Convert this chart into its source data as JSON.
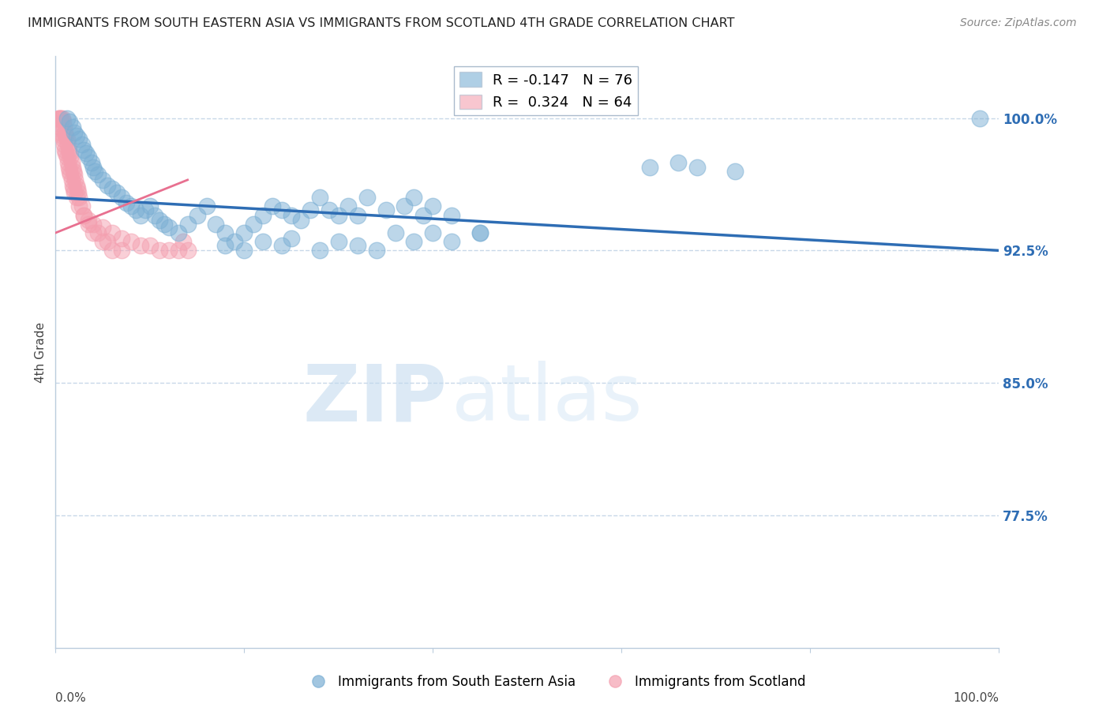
{
  "title": "IMMIGRANTS FROM SOUTH EASTERN ASIA VS IMMIGRANTS FROM SCOTLAND 4TH GRADE CORRELATION CHART",
  "source": "Source: ZipAtlas.com",
  "ylabel": "4th Grade",
  "ytick_labels": [
    "77.5%",
    "85.0%",
    "92.5%",
    "100.0%"
  ],
  "ytick_values": [
    77.5,
    85.0,
    92.5,
    100.0
  ],
  "xlim": [
    0.0,
    100.0
  ],
  "ylim": [
    70.0,
    103.5
  ],
  "blue_R": -0.147,
  "blue_N": 76,
  "pink_R": 0.324,
  "pink_N": 64,
  "blue_color": "#7BAFD4",
  "pink_color": "#F4A0B0",
  "trend_color": "#2E6DB4",
  "pink_trend_color": "#E87090",
  "grid_color": "#C8D8E8",
  "blue_scatter_x": [
    1.2,
    1.5,
    1.8,
    2.0,
    2.2,
    2.5,
    2.8,
    3.0,
    3.2,
    3.5,
    3.8,
    4.0,
    4.2,
    4.5,
    5.0,
    5.5,
    6.0,
    6.5,
    7.0,
    7.5,
    8.0,
    8.5,
    9.0,
    9.5,
    10.0,
    10.5,
    11.0,
    11.5,
    12.0,
    13.0,
    14.0,
    15.0,
    16.0,
    17.0,
    18.0,
    19.0,
    20.0,
    21.0,
    22.0,
    23.0,
    24.0,
    25.0,
    26.0,
    27.0,
    28.0,
    29.0,
    30.0,
    31.0,
    32.0,
    33.0,
    35.0,
    37.0,
    38.0,
    39.0,
    40.0,
    42.0,
    45.0,
    63.0,
    66.0,
    68.0,
    72.0,
    98.0,
    18.0,
    20.0,
    22.0,
    24.0,
    25.0,
    28.0,
    30.0,
    32.0,
    34.0,
    36.0,
    38.0,
    40.0,
    42.0,
    45.0
  ],
  "blue_scatter_y": [
    100.0,
    99.8,
    99.5,
    99.2,
    99.0,
    98.8,
    98.5,
    98.2,
    98.0,
    97.8,
    97.5,
    97.2,
    97.0,
    96.8,
    96.5,
    96.2,
    96.0,
    95.8,
    95.5,
    95.2,
    95.0,
    94.8,
    94.5,
    94.8,
    95.0,
    94.5,
    94.2,
    94.0,
    93.8,
    93.5,
    94.0,
    94.5,
    95.0,
    94.0,
    93.5,
    93.0,
    93.5,
    94.0,
    94.5,
    95.0,
    94.8,
    94.5,
    94.2,
    94.8,
    95.5,
    94.8,
    94.5,
    95.0,
    94.5,
    95.5,
    94.8,
    95.0,
    95.5,
    94.5,
    95.0,
    94.5,
    93.5,
    97.2,
    97.5,
    97.2,
    97.0,
    100.0,
    92.8,
    92.5,
    93.0,
    92.8,
    93.2,
    92.5,
    93.0,
    92.8,
    92.5,
    93.5,
    93.0,
    93.5,
    93.0,
    93.5
  ],
  "pink_scatter_x": [
    0.3,
    0.4,
    0.5,
    0.6,
    0.7,
    0.8,
    0.9,
    1.0,
    1.1,
    1.2,
    1.3,
    1.4,
    1.5,
    1.6,
    1.7,
    1.8,
    1.9,
    2.0,
    2.1,
    2.2,
    2.3,
    2.4,
    2.5,
    2.8,
    3.0,
    3.5,
    4.0,
    4.5,
    5.0,
    5.5,
    6.0,
    7.0,
    0.5,
    0.6,
    0.7,
    0.8,
    0.9,
    1.0,
    1.1,
    1.2,
    1.3,
    1.4,
    1.5,
    1.6,
    1.7,
    1.8,
    1.9,
    2.0,
    2.2,
    2.5,
    3.0,
    3.5,
    4.0,
    5.0,
    6.0,
    7.0,
    8.0,
    9.0,
    10.0,
    11.0,
    12.0,
    13.0,
    14.0,
    13.5
  ],
  "pink_scatter_y": [
    100.0,
    100.0,
    100.0,
    100.0,
    100.0,
    99.8,
    99.5,
    99.2,
    99.0,
    98.8,
    98.5,
    98.2,
    98.0,
    97.8,
    97.5,
    97.2,
    97.0,
    96.8,
    96.5,
    96.2,
    96.0,
    95.8,
    95.5,
    95.0,
    94.5,
    94.0,
    93.5,
    93.5,
    93.0,
    93.0,
    92.5,
    92.5,
    99.5,
    99.2,
    99.0,
    98.8,
    98.5,
    98.2,
    98.0,
    97.8,
    97.5,
    97.2,
    97.0,
    96.8,
    96.5,
    96.2,
    96.0,
    95.8,
    95.5,
    95.0,
    94.5,
    94.2,
    94.0,
    93.8,
    93.5,
    93.2,
    93.0,
    92.8,
    92.8,
    92.5,
    92.5,
    92.5,
    92.5,
    93.0
  ],
  "watermark_zip": "ZIP",
  "watermark_atlas": "atlas",
  "legend_label_blue": "Immigrants from South Eastern Asia",
  "legend_label_pink": "Immigrants from Scotland",
  "blue_trend_x0": 0.0,
  "blue_trend_x1": 100.0,
  "blue_trend_y0": 95.5,
  "blue_trend_y1": 92.5,
  "pink_trend_x0": 0.0,
  "pink_trend_x1": 14.0,
  "pink_trend_y0": 93.5,
  "pink_trend_y1": 96.5
}
